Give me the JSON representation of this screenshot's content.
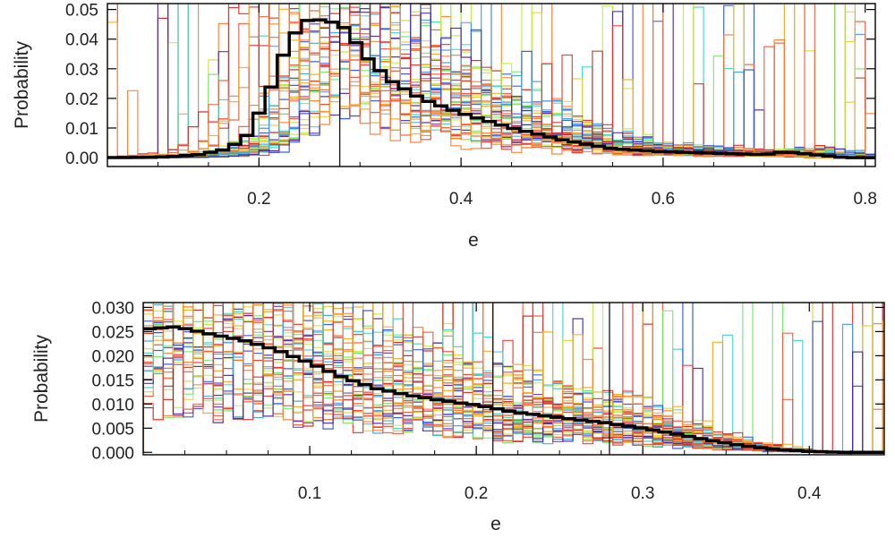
{
  "chart_data": [
    {
      "type": "line",
      "subtype": "step-histogram",
      "xlabel": "e",
      "ylabel": "Probability",
      "xlim": [
        0.05,
        0.81
      ],
      "ylim": [
        -0.003,
        0.052
      ],
      "x_ticks": [
        0.2,
        0.4,
        0.6,
        0.8
      ],
      "x_tick_labels": [
        "0.2",
        "0.4",
        "0.6",
        "0.8"
      ],
      "y_ticks": [
        0.0,
        0.01,
        0.02,
        0.03,
        0.04,
        0.05
      ],
      "y_tick_labels": [
        "0.00",
        "0.01",
        "0.02",
        "0.03",
        "0.04",
        "0.05"
      ],
      "reference_line_x": 0.28,
      "grid": false,
      "series": [
        {
          "role": "combined",
          "color": "#000000",
          "x": [
            0.05,
            0.1,
            0.14,
            0.17,
            0.19,
            0.21,
            0.23,
            0.25,
            0.27,
            0.29,
            0.3,
            0.33,
            0.36,
            0.4,
            0.45,
            0.5,
            0.55,
            0.6,
            0.65,
            0.7,
            0.72,
            0.75,
            0.78,
            0.81
          ],
          "values": [
            0.0,
            0.0001,
            0.001,
            0.003,
            0.008,
            0.022,
            0.04,
            0.047,
            0.046,
            0.043,
            0.036,
            0.026,
            0.02,
            0.015,
            0.01,
            0.006,
            0.003,
            0.002,
            0.0015,
            0.001,
            0.002,
            0.001,
            0.0,
            0.0
          ]
        }
      ],
      "individual_runs": {
        "count": 40,
        "colors": [
          "#e8342a",
          "#f05a3a",
          "#ff7a2e",
          "#f4a623",
          "#e2d23a",
          "#b8ee3d",
          "#6ee86a",
          "#3fd3c7",
          "#3d9be9",
          "#2b4fd8",
          "#47229a",
          "#d6201c"
        ]
      }
    },
    {
      "type": "line",
      "subtype": "step-histogram",
      "xlabel": "e",
      "ylabel": "Probability",
      "xlim": [
        0.0,
        0.445
      ],
      "ylim": [
        -0.0005,
        0.031
      ],
      "x_ticks": [
        0.1,
        0.2,
        0.3,
        0.4
      ],
      "x_tick_labels": [
        "0.1",
        "0.2",
        "0.3",
        "0.4"
      ],
      "y_ticks": [
        0.0,
        0.005,
        0.01,
        0.015,
        0.02,
        0.025,
        0.03
      ],
      "y_tick_labels": [
        "0.000",
        "0.005",
        "0.010",
        "0.015",
        "0.020",
        "0.025",
        "0.030"
      ],
      "reference_lines_x": [
        0.21,
        0.28
      ],
      "grid": false,
      "series": [
        {
          "role": "combined",
          "color": "#000000",
          "x": [
            0.0,
            0.02,
            0.04,
            0.06,
            0.08,
            0.1,
            0.12,
            0.14,
            0.16,
            0.18,
            0.2,
            0.22,
            0.24,
            0.26,
            0.28,
            0.3,
            0.32,
            0.34,
            0.36,
            0.38,
            0.4,
            0.42,
            0.445
          ],
          "values": [
            0.0255,
            0.026,
            0.0245,
            0.0232,
            0.0212,
            0.0185,
            0.0155,
            0.0132,
            0.0118,
            0.0107,
            0.0098,
            0.0085,
            0.0076,
            0.0068,
            0.006,
            0.005,
            0.0038,
            0.0025,
            0.0014,
            0.0006,
            0.0002,
            0.0,
            0.0
          ]
        }
      ],
      "individual_runs": {
        "count": 40,
        "colors": [
          "#e8342a",
          "#f05a3a",
          "#ff7a2e",
          "#f4a623",
          "#e2d23a",
          "#b8ee3d",
          "#6ee86a",
          "#3fd3c7",
          "#3d9be9",
          "#2b4fd8",
          "#47229a",
          "#d6201c"
        ]
      }
    }
  ]
}
